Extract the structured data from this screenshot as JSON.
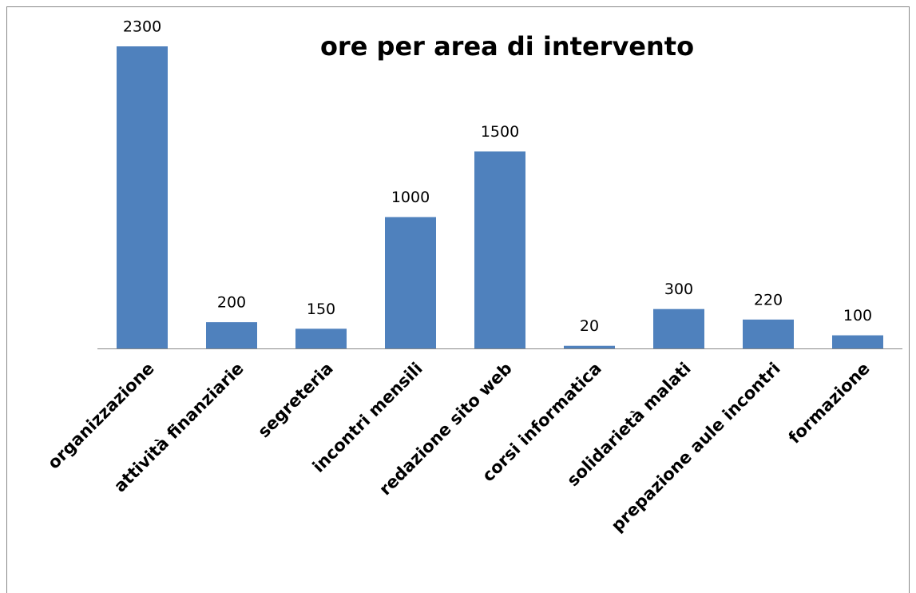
{
  "chart_data": {
    "type": "bar",
    "title": "ore per area di intervento",
    "categories": [
      "organizzazione",
      "attività finanziarie",
      "segreteria",
      "incontri mensili",
      "redazione sito web",
      "corsi informatica",
      "solidarietà malati",
      "prepazione aule incontri",
      "formazione"
    ],
    "values": [
      2300,
      200,
      150,
      1000,
      1500,
      20,
      300,
      220,
      100
    ],
    "color": "#4f81bd"
  }
}
